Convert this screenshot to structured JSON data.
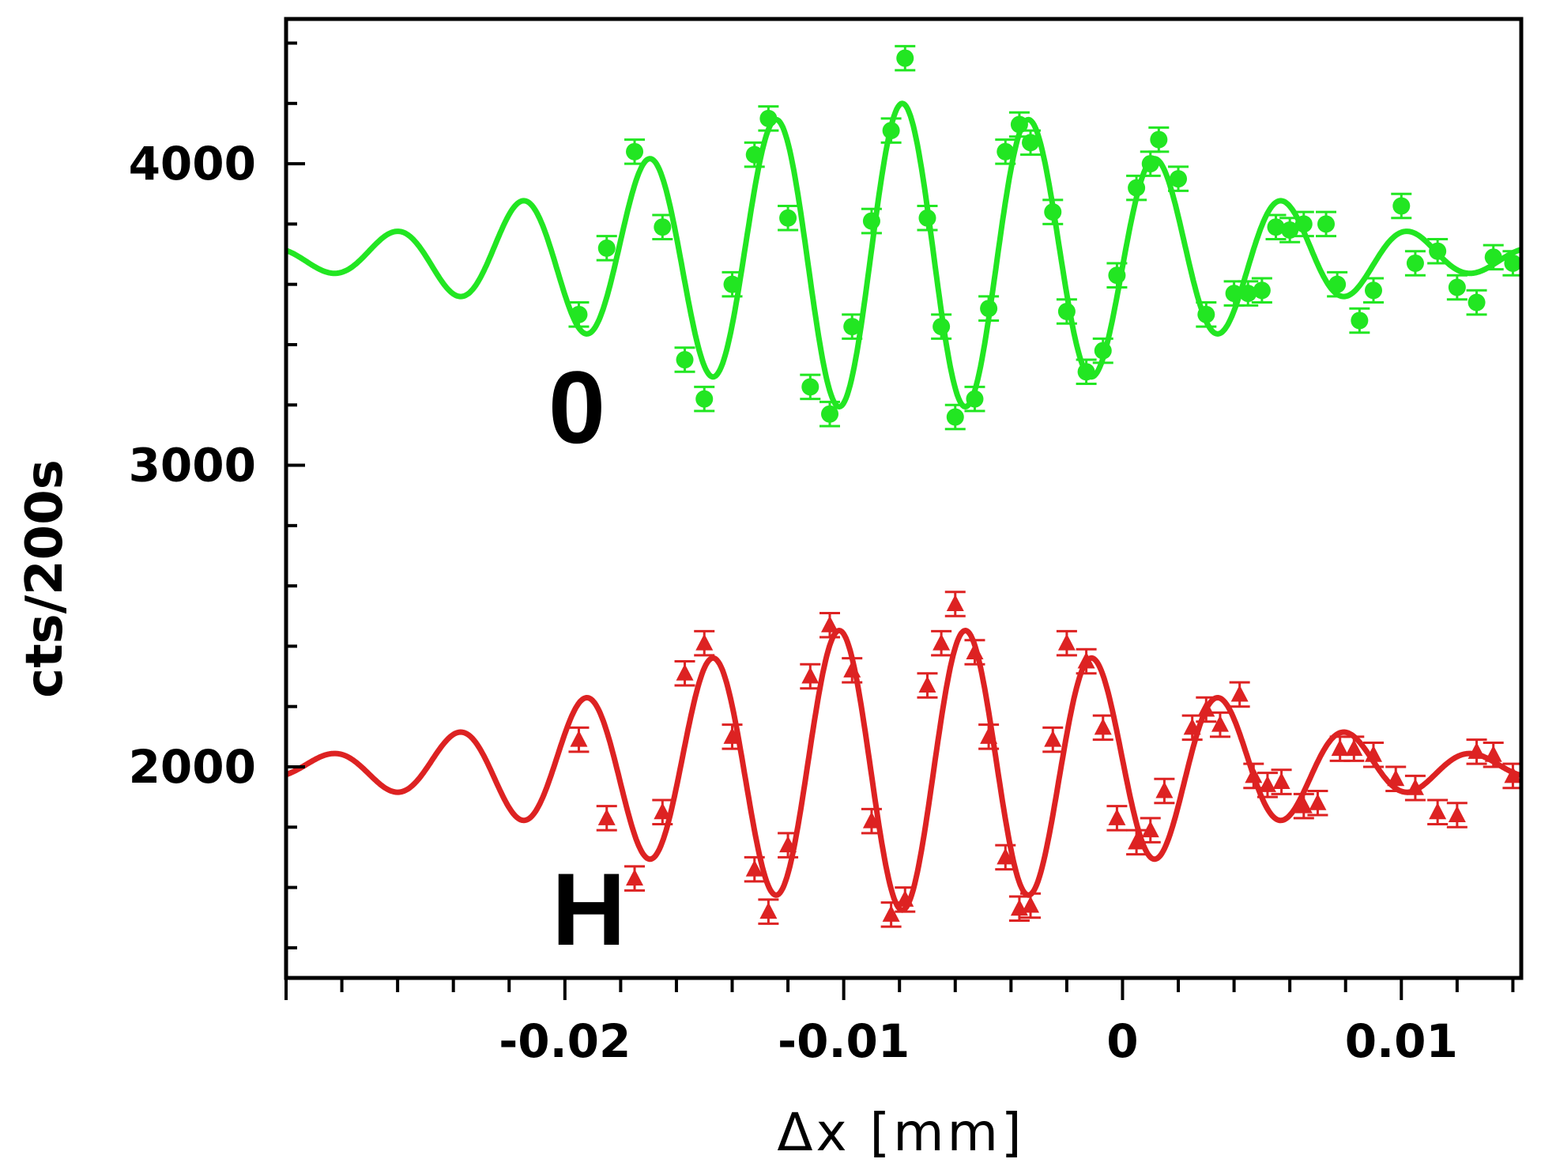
{
  "chart_data": {
    "type": "scatter",
    "title": "",
    "xlabel": "Δx [mm]",
    "ylabel": "cts/200s",
    "xlim": [
      -0.03,
      0.0143
    ],
    "ylim": [
      1300,
      4480
    ],
    "x_ticks": [
      -0.02,
      -0.01,
      0,
      0.01
    ],
    "x_tick_labels": [
      "-0.02",
      "-0.01",
      "0",
      "0.01"
    ],
    "y_ticks": [
      2000,
      3000,
      4000
    ],
    "y_tick_labels": [
      "2000",
      "3000",
      "4000"
    ],
    "grid": false,
    "series": [
      {
        "name": "0",
        "label": "0",
        "color": "#22e622",
        "marker": "circle",
        "error_bar": 40,
        "fit": {
          "baseline": 3690,
          "amplitude": 510,
          "period": 0.00455,
          "phase_x": -0.0079,
          "center": -0.0079,
          "width": 0.0136,
          "x_range": [
            -0.03,
            0.0143
          ]
        },
        "points": [
          [
            -0.0195,
            3500
          ],
          [
            -0.0185,
            3720
          ],
          [
            -0.0175,
            4040
          ],
          [
            -0.0165,
            3790
          ],
          [
            -0.0157,
            3350
          ],
          [
            -0.015,
            3220
          ],
          [
            -0.014,
            3600
          ],
          [
            -0.0132,
            4030
          ],
          [
            -0.0127,
            4150
          ],
          [
            -0.012,
            3820
          ],
          [
            -0.0112,
            3260
          ],
          [
            -0.0105,
            3170
          ],
          [
            -0.0097,
            3460
          ],
          [
            -0.009,
            3810
          ],
          [
            -0.0083,
            4110
          ],
          [
            -0.0078,
            4350
          ],
          [
            -0.007,
            3820
          ],
          [
            -0.0065,
            3460
          ],
          [
            -0.006,
            3160
          ],
          [
            -0.0053,
            3220
          ],
          [
            -0.0048,
            3520
          ],
          [
            -0.0042,
            4040
          ],
          [
            -0.0037,
            4130
          ],
          [
            -0.0033,
            4070
          ],
          [
            -0.0025,
            3840
          ],
          [
            -0.002,
            3510
          ],
          [
            -0.0013,
            3310
          ],
          [
            -0.0007,
            3380
          ],
          [
            -0.0002,
            3630
          ],
          [
            0.0005,
            3920
          ],
          [
            0.001,
            4000
          ],
          [
            0.0013,
            4080
          ],
          [
            0.002,
            3950
          ],
          [
            0.003,
            3500
          ],
          [
            0.004,
            3570
          ],
          [
            0.0045,
            3570
          ],
          [
            0.005,
            3580
          ],
          [
            0.0055,
            3790
          ],
          [
            0.006,
            3780
          ],
          [
            0.0065,
            3800
          ],
          [
            0.0073,
            3800
          ],
          [
            0.0077,
            3600
          ],
          [
            0.0085,
            3480
          ],
          [
            0.009,
            3580
          ],
          [
            0.01,
            3860
          ],
          [
            0.0105,
            3670
          ],
          [
            0.0113,
            3710
          ],
          [
            0.012,
            3590
          ],
          [
            0.0127,
            3540
          ],
          [
            0.0133,
            3690
          ],
          [
            0.014,
            3670
          ]
        ]
      },
      {
        "name": "H",
        "label": "H",
        "color": "#dd2222",
        "marker": "triangle",
        "error_bar": 40,
        "fit": {
          "baseline": 1995,
          "amplitude": -470,
          "period": 0.00455,
          "phase_x": -0.0079,
          "center": -0.0079,
          "width": 0.0136,
          "x_range": [
            -0.03,
            0.0143
          ]
        },
        "points": [
          [
            -0.0195,
            2090
          ],
          [
            -0.0185,
            1830
          ],
          [
            -0.0175,
            1630
          ],
          [
            -0.0165,
            1850
          ],
          [
            -0.0157,
            2310
          ],
          [
            -0.015,
            2410
          ],
          [
            -0.014,
            2100
          ],
          [
            -0.0132,
            1660
          ],
          [
            -0.0127,
            1520
          ],
          [
            -0.012,
            1740
          ],
          [
            -0.0112,
            2300
          ],
          [
            -0.0105,
            2470
          ],
          [
            -0.0097,
            2320
          ],
          [
            -0.009,
            1820
          ],
          [
            -0.0083,
            1510
          ],
          [
            -0.0078,
            1560
          ],
          [
            -0.007,
            2270
          ],
          [
            -0.0065,
            2410
          ],
          [
            -0.006,
            2540
          ],
          [
            -0.0053,
            2380
          ],
          [
            -0.0048,
            2100
          ],
          [
            -0.0042,
            1700
          ],
          [
            -0.0037,
            1530
          ],
          [
            -0.0033,
            1540
          ],
          [
            -0.0025,
            2090
          ],
          [
            -0.002,
            2410
          ],
          [
            -0.0013,
            2350
          ],
          [
            -0.0007,
            2130
          ],
          [
            -0.0002,
            1830
          ],
          [
            0.0005,
            1750
          ],
          [
            0.001,
            1790
          ],
          [
            0.0015,
            1920
          ],
          [
            0.0025,
            2130
          ],
          [
            0.003,
            2190
          ],
          [
            0.0035,
            2140
          ],
          [
            0.0042,
            2240
          ],
          [
            0.0047,
            1970
          ],
          [
            0.0052,
            1940
          ],
          [
            0.0057,
            1950
          ],
          [
            0.0065,
            1870
          ],
          [
            0.007,
            1880
          ],
          [
            0.0078,
            2060
          ],
          [
            0.0083,
            2060
          ],
          [
            0.009,
            2040
          ],
          [
            0.0098,
            1960
          ],
          [
            0.0105,
            1930
          ],
          [
            0.0113,
            1850
          ],
          [
            0.012,
            1840
          ],
          [
            0.0127,
            2050
          ],
          [
            0.0133,
            2040
          ],
          [
            0.014,
            1970
          ]
        ]
      }
    ]
  }
}
